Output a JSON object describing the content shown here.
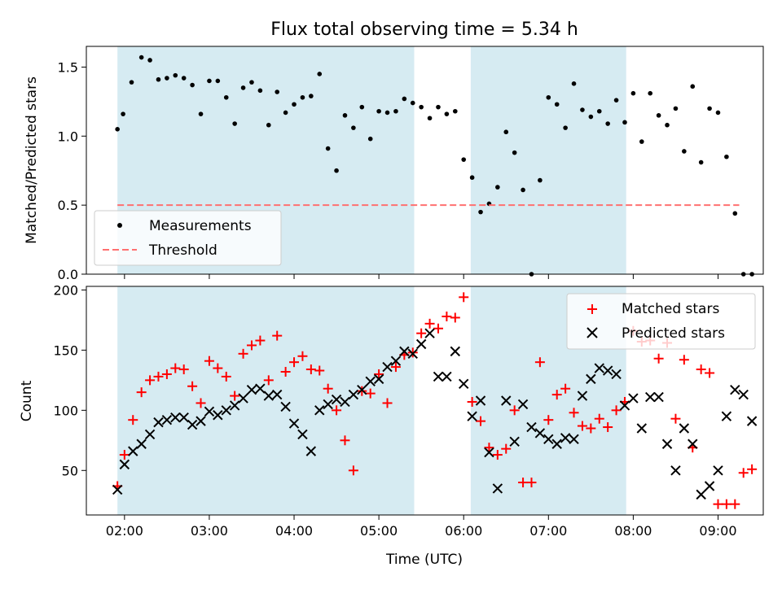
{
  "colors": {
    "band": "#add8e6",
    "threshold": "#ff7070",
    "matched": "#ff0000",
    "predicted": "#000000"
  },
  "chart_data": [
    {
      "type": "scatter",
      "title": "Flux total observing time = 5.34 h",
      "xlabel": "",
      "ylabel": "Matched/Predicted stars",
      "xlim": [
        "01:33",
        "09:32"
      ],
      "ylim": [
        0,
        1.65
      ],
      "yticks": [
        "0.0",
        "0.5",
        "1.0",
        "1.5"
      ],
      "grid": false,
      "legend_placement": "lower-left",
      "shaded_intervals": [
        [
          "01:55",
          "05:25"
        ],
        [
          "06:05",
          "07:55"
        ]
      ],
      "series": [
        {
          "name": "Measurements",
          "style": "dots",
          "x": [
            "01:55",
            "01:59",
            "02:05",
            "02:12",
            "02:18",
            "02:24",
            "02:30",
            "02:36",
            "02:42",
            "02:48",
            "02:54",
            "03:00",
            "03:06",
            "03:12",
            "03:18",
            "03:24",
            "03:30",
            "03:36",
            "03:42",
            "03:48",
            "03:54",
            "04:00",
            "04:06",
            "04:12",
            "04:18",
            "04:24",
            "04:30",
            "04:36",
            "04:42",
            "04:48",
            "04:54",
            "05:00",
            "05:06",
            "05:12",
            "05:18",
            "05:24",
            "05:30",
            "05:36",
            "05:42",
            "05:48",
            "05:54",
            "06:00",
            "06:06",
            "06:12",
            "06:18",
            "06:24",
            "06:30",
            "06:36",
            "06:42",
            "06:48",
            "06:54",
            "07:00",
            "07:06",
            "07:12",
            "07:18",
            "07:24",
            "07:30",
            "07:36",
            "07:42",
            "07:48",
            "07:54",
            "08:00",
            "08:06",
            "08:12",
            "08:18",
            "08:24",
            "08:30",
            "08:36",
            "08:42",
            "08:48",
            "08:54",
            "09:00",
            "09:06",
            "09:12",
            "09:18",
            "09:24"
          ],
          "y": [
            1.05,
            1.16,
            1.39,
            1.57,
            1.55,
            1.41,
            1.42,
            1.44,
            1.42,
            1.37,
            1.16,
            1.4,
            1.4,
            1.28,
            1.09,
            1.35,
            1.39,
            1.33,
            1.08,
            1.32,
            1.17,
            1.23,
            1.28,
            1.29,
            1.45,
            0.91,
            0.75,
            1.15,
            1.06,
            1.21,
            0.98,
            1.18,
            1.17,
            1.18,
            1.27,
            1.24,
            1.21,
            1.13,
            1.21,
            1.16,
            1.18,
            0.83,
            0.7,
            0.45,
            0.51,
            0.63,
            1.03,
            0.88,
            0.61,
            0.0,
            0.68,
            1.28,
            1.23,
            1.06,
            1.38,
            1.19,
            1.14,
            1.18,
            1.09,
            1.26,
            1.1,
            1.31,
            0.96,
            1.31,
            1.15,
            1.08,
            1.2,
            0.89,
            1.36,
            0.81,
            1.2,
            1.17,
            0.85,
            0.44,
            0.0,
            0.0
          ]
        },
        {
          "name": "Threshold",
          "style": "dashed-line",
          "x": [
            "01:55",
            "09:15"
          ],
          "y": [
            0.5,
            0.5
          ]
        }
      ]
    },
    {
      "type": "scatter",
      "title": "",
      "xlabel": "Time (UTC)",
      "ylabel": "Count",
      "xlim": [
        "01:33",
        "09:32"
      ],
      "ylim": [
        13,
        203
      ],
      "xticks": [
        "02:00",
        "03:00",
        "04:00",
        "05:00",
        "06:00",
        "07:00",
        "08:00",
        "09:00"
      ],
      "yticks": [
        "50",
        "100",
        "150",
        "200"
      ],
      "grid": false,
      "legend_placement": "upper-right",
      "shaded_intervals": [
        [
          "01:55",
          "05:25"
        ],
        [
          "06:05",
          "07:55"
        ]
      ],
      "series": [
        {
          "name": "Matched stars",
          "marker": "plus",
          "x": [
            "01:55",
            "02:00",
            "02:06",
            "02:12",
            "02:18",
            "02:24",
            "02:30",
            "02:36",
            "02:42",
            "02:48",
            "02:54",
            "03:00",
            "03:06",
            "03:12",
            "03:18",
            "03:24",
            "03:30",
            "03:36",
            "03:42",
            "03:48",
            "03:54",
            "04:00",
            "04:06",
            "04:12",
            "04:18",
            "04:24",
            "04:30",
            "04:36",
            "04:42",
            "04:48",
            "04:54",
            "05:00",
            "05:06",
            "05:12",
            "05:18",
            "05:24",
            "05:30",
            "05:36",
            "05:42",
            "05:48",
            "05:54",
            "06:00",
            "06:06",
            "06:12",
            "06:18",
            "06:24",
            "06:30",
            "06:36",
            "06:42",
            "06:48",
            "06:54",
            "07:00",
            "07:06",
            "07:12",
            "07:18",
            "07:24",
            "07:30",
            "07:36",
            "07:42",
            "07:48",
            "07:54",
            "08:00",
            "08:06",
            "08:12",
            "08:18",
            "08:24",
            "08:30",
            "08:36",
            "08:42",
            "08:48",
            "08:54",
            "09:00",
            "09:06",
            "09:12",
            "09:18",
            "09:24"
          ],
          "y": [
            37,
            63,
            92,
            115,
            125,
            128,
            130,
            135,
            134,
            120,
            106,
            141,
            135,
            128,
            112,
            147,
            154,
            158,
            125,
            162,
            132,
            140,
            145,
            134,
            133,
            118,
            100,
            75,
            50,
            116,
            114,
            130,
            106,
            136,
            146,
            148,
            164,
            172,
            168,
            178,
            177,
            194,
            107,
            91,
            69,
            63,
            68,
            100,
            40,
            40,
            140,
            92,
            113,
            118,
            98,
            87,
            85,
            93,
            86,
            100,
            107,
            166,
            157,
            158,
            143,
            156,
            93,
            142,
            69,
            134,
            131,
            22,
            22,
            22,
            48,
            51
          ]
        },
        {
          "name": "Predicted stars",
          "marker": "x",
          "x": [
            "01:55",
            "02:00",
            "02:06",
            "02:12",
            "02:18",
            "02:24",
            "02:30",
            "02:36",
            "02:42",
            "02:48",
            "02:54",
            "03:00",
            "03:06",
            "03:12",
            "03:18",
            "03:24",
            "03:30",
            "03:36",
            "03:42",
            "03:48",
            "03:54",
            "04:00",
            "04:06",
            "04:12",
            "04:18",
            "04:24",
            "04:30",
            "04:36",
            "04:42",
            "04:48",
            "04:54",
            "05:00",
            "05:06",
            "05:12",
            "05:18",
            "05:24",
            "05:30",
            "05:36",
            "05:42",
            "05:48",
            "05:54",
            "06:00",
            "06:06",
            "06:12",
            "06:18",
            "06:24",
            "06:30",
            "06:36",
            "06:42",
            "06:48",
            "06:54",
            "07:00",
            "07:06",
            "07:12",
            "07:18",
            "07:24",
            "07:30",
            "07:36",
            "07:42",
            "07:48",
            "07:54",
            "08:00",
            "08:06",
            "08:12",
            "08:18",
            "08:24",
            "08:30",
            "08:36",
            "08:42",
            "08:48",
            "08:54",
            "09:00",
            "09:06",
            "09:12",
            "09:18",
            "09:24"
          ],
          "y": [
            34,
            55,
            66,
            72,
            80,
            90,
            92,
            94,
            94,
            88,
            91,
            99,
            96,
            100,
            104,
            110,
            117,
            118,
            112,
            113,
            103,
            89,
            80,
            66,
            100,
            105,
            109,
            107,
            113,
            117,
            124,
            126,
            136,
            141,
            149,
            147,
            155,
            164,
            128,
            128,
            149,
            122,
            95,
            108,
            65,
            35,
            108,
            74,
            105,
            86,
            81,
            76,
            72,
            77,
            76,
            112,
            126,
            135,
            133,
            130,
            104,
            110,
            85,
            111,
            111,
            72,
            50,
            85,
            72,
            30,
            37,
            50,
            95,
            117,
            113,
            91
          ]
        }
      ]
    }
  ]
}
